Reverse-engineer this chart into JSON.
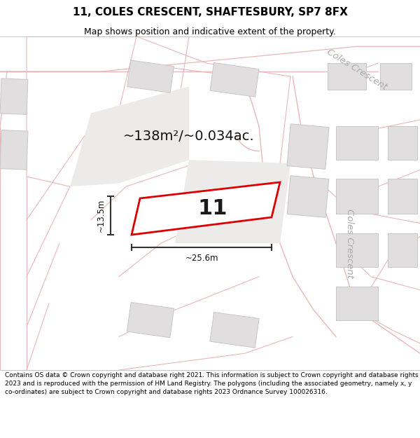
{
  "title_line1": "11, COLES CRESCENT, SHAFTESBURY, SP7 8FX",
  "title_line2": "Map shows position and indicative extent of the property.",
  "footer_text": "Contains OS data © Crown copyright and database right 2021. This information is subject to Crown copyright and database rights 2023 and is reproduced with the permission of HM Land Registry. The polygons (including the associated geometry, namely x, y co-ordinates) are subject to Crown copyright and database rights 2023 Ordnance Survey 100026316.",
  "area_label": "~138m²/~0.034ac.",
  "plot_number": "11",
  "width_label": "~25.6m",
  "height_label": "~13.5m",
  "map_bg": "#f5f3f3",
  "road_line_color": "#e8b8b8",
  "building_fill": "#e0dede",
  "building_edge": "#c8c5c5",
  "red_plot_color": "#dd0000",
  "dim_color": "#333333",
  "street_color": "#aaaaaa",
  "title_fontsize": 11,
  "subtitle_fontsize": 9,
  "footer_fontsize": 6.5
}
